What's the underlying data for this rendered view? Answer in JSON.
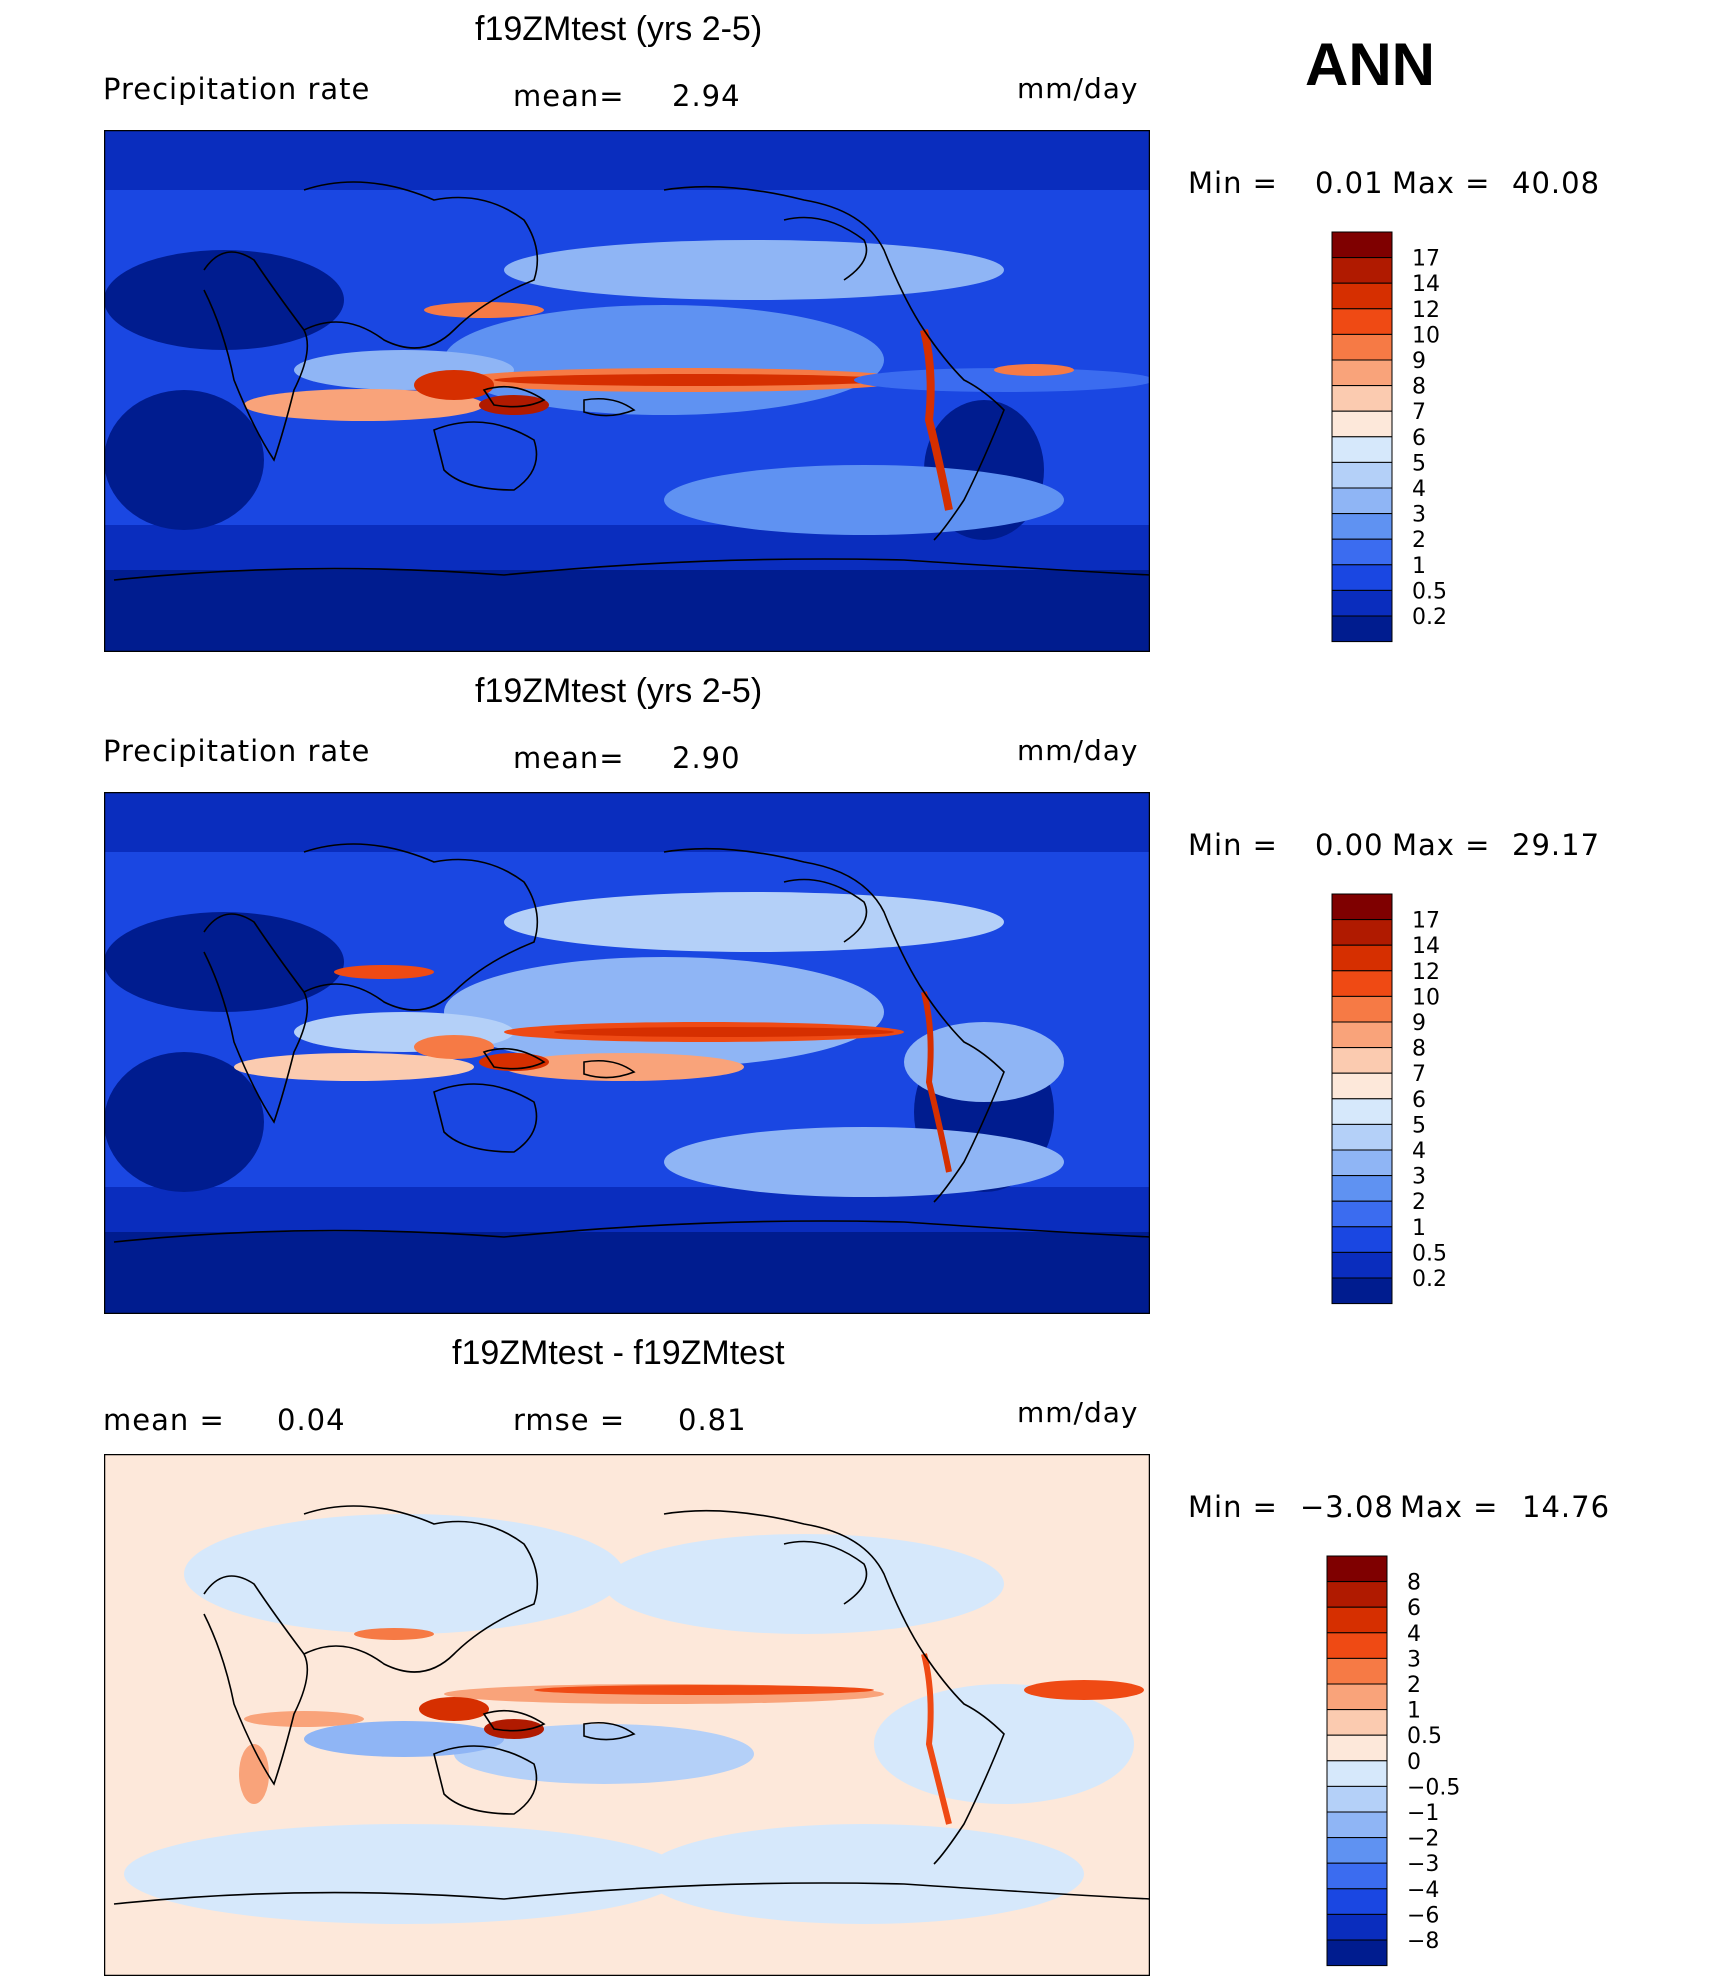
{
  "season": "ANN",
  "panels": [
    {
      "title": "f19ZMtest (yrs 2-5)",
      "left_label": "Precipitation  rate",
      "center_label": "mean=",
      "center_value": "2.94",
      "units": "mm/day",
      "min_label": "Min  =",
      "min_value": "0.01",
      "max_label": "Max  =",
      "max_value": "40.08",
      "map_name": "precipitation-map-1"
    },
    {
      "title": "f19ZMtest (yrs 2-5)",
      "left_label": "Precipitation  rate",
      "center_label": "mean=",
      "center_value": "2.90",
      "units": "mm/day",
      "min_label": "Min  =",
      "min_value": "0.00",
      "max_label": "Max  =",
      "max_value": "29.17",
      "map_name": "precipitation-map-2"
    },
    {
      "title": "f19ZMtest - f19ZMtest",
      "left_label": "mean  =",
      "left_value": "0.04",
      "center_label": "rmse  =",
      "center_value": "0.81",
      "units": "mm/day",
      "min_label": "Min  =",
      "min_value": "−3.08",
      "max_label": "Max  =",
      "max_value": "14.76",
      "map_name": "difference-map"
    }
  ],
  "colorbars": {
    "precip": {
      "labels": [
        "17",
        "14",
        "12",
        "10",
        "9",
        "8",
        "7",
        "6",
        "5",
        "4",
        "3",
        "2",
        "1",
        "0.5",
        "0.2"
      ],
      "colors": [
        "#7f0000",
        "#b01a00",
        "#d62f00",
        "#ef4a14",
        "#f67a45",
        "#f9a37a",
        "#fbcbb0",
        "#fde8da",
        "#d6e8fb",
        "#b4d0f8",
        "#8fb5f5",
        "#5f92f2",
        "#3b6cf0",
        "#1a47e2",
        "#0a2dbe",
        "#001c8f"
      ]
    },
    "diff": {
      "labels": [
        "8",
        "6",
        "4",
        "3",
        "2",
        "1",
        "0.5",
        "0",
        "−0.5",
        "−1",
        "−2",
        "−3",
        "−4",
        "−6",
        "−8"
      ],
      "colors": [
        "#7f0000",
        "#b01a00",
        "#d62f00",
        "#ef4a14",
        "#f67a45",
        "#f9a37a",
        "#fbcbb0",
        "#fde8da",
        "#d6e8fb",
        "#b4d0f8",
        "#8fb5f5",
        "#5f92f2",
        "#3b6cf0",
        "#1a47e2",
        "#0a2dbe",
        "#001c8f"
      ]
    }
  }
}
